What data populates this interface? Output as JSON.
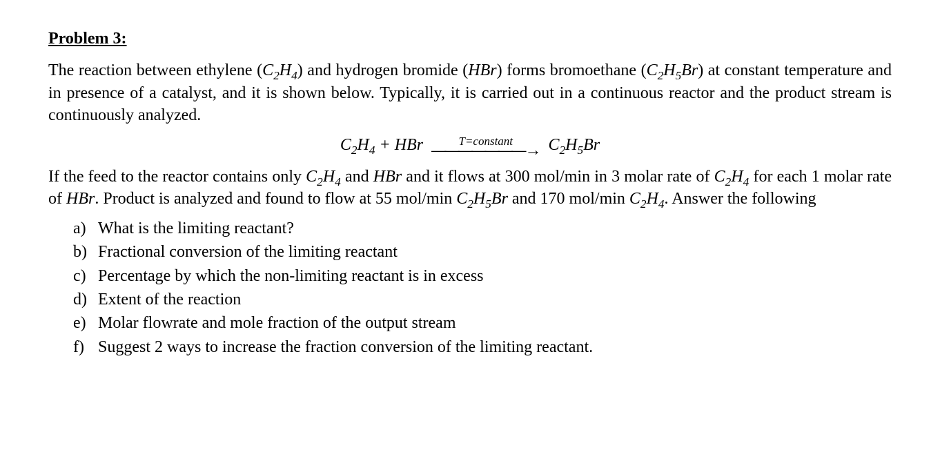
{
  "heading": "Problem 3:",
  "para1_pre": "The reaction between ethylene (",
  "para1_mid1": ") and hydrogen bromide (",
  "para1_mid2": ") forms bromoethane (",
  "para1_post": ") at constant temperature and in presence of a catalyst, and it is shown below. Typically, it is carried out in a continuous reactor and the product stream is continuously analyzed.",
  "chem": {
    "ethylene_c": "C",
    "ethylene_sub1": "2",
    "ethylene_h": "H",
    "ethylene_sub2": "4",
    "hbr_h": "H",
    "hbr_br": "Br",
    "prod_c": "C",
    "prod_sub1": "2",
    "prod_h": "H",
    "prod_sub2": "5",
    "prod_br": "Br"
  },
  "equation": {
    "lhs_a": "C",
    "lhs_a_s1": "2",
    "lhs_a_h": "H",
    "lhs_a_s2": "4",
    "plus": " + ",
    "lhs_b": "HBr",
    "arrow_label": "T=constant",
    "arrow_line": "———————→",
    "rhs_c": "C",
    "rhs_s1": "2",
    "rhs_h": "H",
    "rhs_s2": "5",
    "rhs_br": "Br"
  },
  "para2_a": "If the feed to the reactor contains only ",
  "para2_b": " and ",
  "para2_c": " and it flows at 300 mol/min in 3 molar rate of ",
  "para2_d": " for each 1 molar rate of ",
  "para2_e": ".  Product is analyzed and found to flow at 55 mol/min ",
  "para2_f": " and 170 mol/min ",
  "para2_g": ". Answer the following",
  "questions": {
    "a_marker": "a)",
    "a": "What is the limiting reactant?",
    "b_marker": "b)",
    "b": "Fractional conversion of the limiting reactant",
    "c_marker": "c)",
    "c": "Percentage by which the non-limiting reactant is in excess",
    "d_marker": "d)",
    "d": "Extent of the reaction",
    "e_marker": "e)",
    "e": "Molar flowrate and mole fraction of the output stream",
    "f_marker": "f)",
    "f": "Suggest 2 ways to increase the fraction conversion of the limiting reactant."
  }
}
